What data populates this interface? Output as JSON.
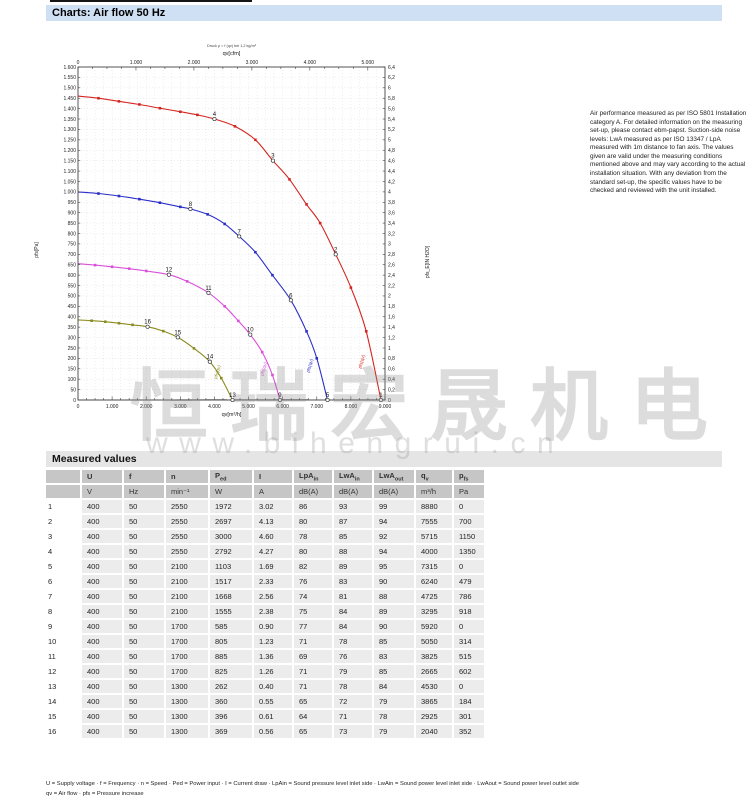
{
  "header": {
    "title": "Charts: Air flow 50 Hz",
    "bg": "#cfe0f4"
  },
  "side_note": {
    "text": "Air performance measured as per ISO 5801 Installation category A. For detailed information on the measuring set-up, please contact ebm-papst. Suction-side noise levels: LwA measured as per ISO 13347 / LpA measured with 1m distance to fan axis. The values given are valid under the measuring conditions mentioned above and may vary according to the actual installation situation. With any deviation from the standard set-up, the specific values have to be checked and reviewed with the unit installed."
  },
  "watermark": {
    "cn": "恒瑞宏晟机电",
    "url": "www.bihengrui.cn"
  },
  "chart_data": {
    "type": "line",
    "title_top": "Druck p = f (qv) bei 1,2 kg/m³",
    "x_top": {
      "label": "qv[cfm]",
      "min": 0,
      "max": 5297,
      "tick_step": 1000,
      "minor_step": 250
    },
    "x_bottom": {
      "label": "qv[m³/h]",
      "min": 0,
      "max": 9000,
      "tick_step": 1000,
      "minor_step": 250
    },
    "y_left": {
      "label": "pfs[Pa]",
      "min": 0,
      "max": 1600,
      "tick_step": 50
    },
    "y_right": {
      "label": "pfs_E[IN H2O]",
      "min": 0,
      "max": 6.4,
      "tick_step": 0.2
    },
    "grid": {
      "v_step_m3h": 250,
      "h_step_pa": 50
    },
    "series": [
      {
        "name": "2550 min⁻¹",
        "color": "#d42620",
        "end_label": "pfs(qv)",
        "end_label_at": [
          8300,
          150
        ],
        "points": [
          [
            0,
            1460
          ],
          [
            600,
            1450
          ],
          [
            1200,
            1435
          ],
          [
            1800,
            1420
          ],
          [
            2400,
            1402
          ],
          [
            3000,
            1385
          ],
          [
            3500,
            1370
          ],
          [
            4000,
            1350
          ],
          [
            4600,
            1315
          ],
          [
            5200,
            1250
          ],
          [
            5715,
            1150
          ],
          [
            6200,
            1060
          ],
          [
            6700,
            940
          ],
          [
            7100,
            850
          ],
          [
            7555,
            700
          ],
          [
            8000,
            540
          ],
          [
            8450,
            330
          ],
          [
            8880,
            0
          ]
        ]
      },
      {
        "name": "2100 min⁻¹",
        "color": "#2b2fc8",
        "end_label": "pfs(qv)",
        "end_label_at": [
          6780,
          130
        ],
        "points": [
          [
            0,
            1000
          ],
          [
            600,
            992
          ],
          [
            1200,
            980
          ],
          [
            1800,
            965
          ],
          [
            2400,
            948
          ],
          [
            3000,
            928
          ],
          [
            3295,
            918
          ],
          [
            3800,
            892
          ],
          [
            4300,
            846
          ],
          [
            4725,
            786
          ],
          [
            5200,
            710
          ],
          [
            5700,
            600
          ],
          [
            6240,
            479
          ],
          [
            6700,
            330
          ],
          [
            7000,
            200
          ],
          [
            7315,
            0
          ]
        ]
      },
      {
        "name": "1700 min⁻¹",
        "color": "#d94fd9",
        "end_label": "pfs(qv)",
        "end_label_at": [
          5430,
          115
        ],
        "points": [
          [
            0,
            655
          ],
          [
            500,
            648
          ],
          [
            1000,
            640
          ],
          [
            1500,
            631
          ],
          [
            2000,
            620
          ],
          [
            2665,
            602
          ],
          [
            3200,
            570
          ],
          [
            3825,
            515
          ],
          [
            4300,
            450
          ],
          [
            4700,
            380
          ],
          [
            5050,
            314
          ],
          [
            5400,
            230
          ],
          [
            5700,
            120
          ],
          [
            5920,
            0
          ]
        ]
      },
      {
        "name": "1300 min⁻¹",
        "color": "#8b8b20",
        "end_label": "pfs(qv)",
        "end_label_at": [
          4070,
          100
        ],
        "points": [
          [
            0,
            385
          ],
          [
            400,
            381
          ],
          [
            800,
            376
          ],
          [
            1200,
            369
          ],
          [
            1600,
            361
          ],
          [
            2040,
            352
          ],
          [
            2500,
            331
          ],
          [
            2925,
            301
          ],
          [
            3400,
            248
          ],
          [
            3865,
            184
          ],
          [
            4200,
            105
          ],
          [
            4530,
            0
          ]
        ]
      }
    ],
    "system_curves": [
      {
        "coef": 8.4375e-08,
        "qmax": 4365
      },
      {
        "coef": 3.521e-08,
        "qmax": 6742
      },
      {
        "coef": 1.2264e-08,
        "qmax": 9000
      }
    ],
    "operating_points": [
      {
        "n": 1,
        "qv": 8880,
        "p": 0
      },
      {
        "n": 2,
        "qv": 7555,
        "p": 700
      },
      {
        "n": 3,
        "qv": 5715,
        "p": 1150
      },
      {
        "n": 4,
        "qv": 4000,
        "p": 1350
      },
      {
        "n": 5,
        "qv": 7315,
        "p": 0
      },
      {
        "n": 6,
        "qv": 6240,
        "p": 479
      },
      {
        "n": 7,
        "qv": 4725,
        "p": 786
      },
      {
        "n": 8,
        "qv": 3295,
        "p": 918
      },
      {
        "n": 9,
        "qv": 5920,
        "p": 0
      },
      {
        "n": 10,
        "qv": 5050,
        "p": 314
      },
      {
        "n": 11,
        "qv": 3825,
        "p": 515
      },
      {
        "n": 12,
        "qv": 2665,
        "p": 602
      },
      {
        "n": 13,
        "qv": 4530,
        "p": 0
      },
      {
        "n": 14,
        "qv": 3865,
        "p": 184
      },
      {
        "n": 15,
        "qv": 2925,
        "p": 301
      },
      {
        "n": 16,
        "qv": 2040,
        "p": 352
      }
    ]
  },
  "table": {
    "title": "Measured values",
    "columns": [
      {
        "main": "",
        "sub": ""
      },
      {
        "main": "U",
        "sub": ""
      },
      {
        "main": "f",
        "sub": ""
      },
      {
        "main": "n",
        "sub": ""
      },
      {
        "main": "P",
        "sub": "ed"
      },
      {
        "main": "I",
        "sub": ""
      },
      {
        "main": "LpA",
        "sub": "in"
      },
      {
        "main": "LwA",
        "sub": "in"
      },
      {
        "main": "LwA",
        "sub": "out"
      },
      {
        "main": "q",
        "sub": "v"
      },
      {
        "main": "p",
        "sub": "fs"
      }
    ],
    "units": [
      "",
      "V",
      "Hz",
      "min⁻¹",
      "W",
      "A",
      "dB(A)",
      "dB(A)",
      "dB(A)",
      "m³/h",
      "Pa"
    ],
    "rows": [
      [
        "1",
        "400",
        "50",
        "2550",
        "1972",
        "3.02",
        "86",
        "93",
        "99",
        "8880",
        "0"
      ],
      [
        "2",
        "400",
        "50",
        "2550",
        "2697",
        "4.13",
        "80",
        "87",
        "94",
        "7555",
        "700"
      ],
      [
        "3",
        "400",
        "50",
        "2550",
        "3000",
        "4.60",
        "78",
        "85",
        "92",
        "5715",
        "1150"
      ],
      [
        "4",
        "400",
        "50",
        "2550",
        "2792",
        "4.27",
        "80",
        "88",
        "94",
        "4000",
        "1350"
      ],
      [
        "5",
        "400",
        "50",
        "2100",
        "1103",
        "1.69",
        "82",
        "89",
        "95",
        "7315",
        "0"
      ],
      [
        "6",
        "400",
        "50",
        "2100",
        "1517",
        "2.33",
        "76",
        "83",
        "90",
        "6240",
        "479"
      ],
      [
        "7",
        "400",
        "50",
        "2100",
        "1668",
        "2.56",
        "74",
        "81",
        "88",
        "4725",
        "786"
      ],
      [
        "8",
        "400",
        "50",
        "2100",
        "1555",
        "2.38",
        "75",
        "84",
        "89",
        "3295",
        "918"
      ],
      [
        "9",
        "400",
        "50",
        "1700",
        "585",
        "0.90",
        "77",
        "84",
        "90",
        "5920",
        "0"
      ],
      [
        "10",
        "400",
        "50",
        "1700",
        "805",
        "1.23",
        "71",
        "78",
        "85",
        "5050",
        "314"
      ],
      [
        "11",
        "400",
        "50",
        "1700",
        "885",
        "1.36",
        "69",
        "76",
        "83",
        "3825",
        "515"
      ],
      [
        "12",
        "400",
        "50",
        "1700",
        "825",
        "1.26",
        "71",
        "79",
        "85",
        "2665",
        "602"
      ],
      [
        "13",
        "400",
        "50",
        "1300",
        "262",
        "0.40",
        "71",
        "78",
        "84",
        "4530",
        "0"
      ],
      [
        "14",
        "400",
        "50",
        "1300",
        "360",
        "0.55",
        "65",
        "72",
        "79",
        "3865",
        "184"
      ],
      [
        "15",
        "400",
        "50",
        "1300",
        "396",
        "0.61",
        "64",
        "71",
        "78",
        "2925",
        "301"
      ],
      [
        "16",
        "400",
        "50",
        "1300",
        "369",
        "0.56",
        "65",
        "73",
        "79",
        "2040",
        "352"
      ]
    ]
  },
  "footer": {
    "line1": "U = Supply voltage · f = Frequency · n = Speed · Ped = Power input · I = Current draw · LpAin = Sound pressure level inlet side · LwAin = Sound power level inlet side · LwAout = Sound power level outlet side",
    "line2": "qv = Air flow · pfs = Pressure increase"
  }
}
